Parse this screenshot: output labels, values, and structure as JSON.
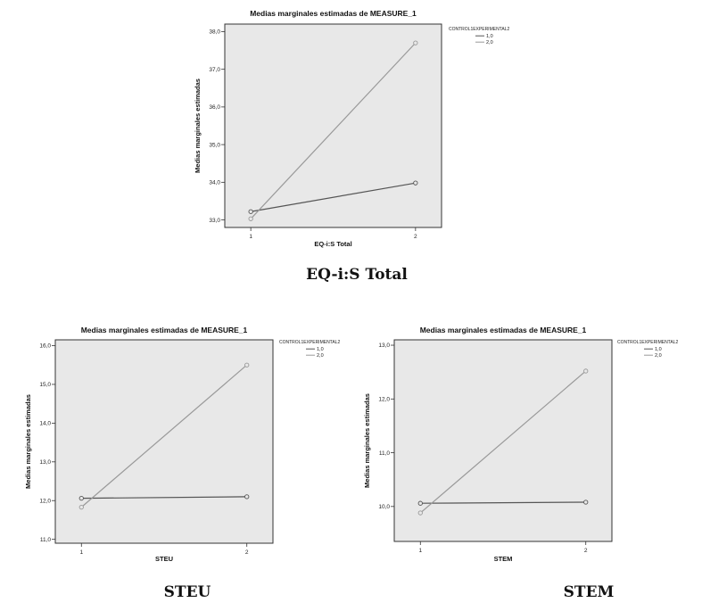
{
  "chart_data": [
    {
      "type": "line",
      "title": "Medias marginales estimadas de MEASURE_1",
      "xlabel": "EQ-i:S Total",
      "ylabel": "Medias marginales estimadas",
      "categories": [
        "1",
        "2"
      ],
      "ylim": [
        32.8,
        38.2
      ],
      "yticks": [
        "33,0",
        "34,0",
        "35,0",
        "36,0",
        "37,0",
        "38,0"
      ],
      "ytick_values": [
        33,
        34,
        35,
        36,
        37,
        38
      ],
      "legend_title": "CONTROL1EXPERIMENTAL2",
      "legend_position": "top-right",
      "grid": false,
      "series": [
        {
          "name": "1,0",
          "values": [
            33.22,
            33.98
          ],
          "color": "#555555"
        },
        {
          "name": "2,0",
          "values": [
            33.03,
            37.7
          ],
          "color": "#999999"
        }
      ],
      "caption": "EQ-i:S Total"
    },
    {
      "type": "line",
      "title": "Medias marginales estimadas de MEASURE_1",
      "xlabel": "STEU",
      "ylabel": "Medias marginales estimadas",
      "categories": [
        "1",
        "2"
      ],
      "ylim": [
        10.9,
        16.15
      ],
      "yticks": [
        "11,0",
        "12,0",
        "13,0",
        "14,0",
        "15,0",
        "16,0"
      ],
      "ytick_values": [
        11,
        12,
        13,
        14,
        15,
        16
      ],
      "legend_title": "CONTROL1EXPERIMENTAL2",
      "legend_position": "top-right",
      "grid": false,
      "series": [
        {
          "name": "1,0",
          "values": [
            12.06,
            12.1
          ],
          "color": "#555555"
        },
        {
          "name": "2,0",
          "values": [
            11.83,
            15.5
          ],
          "color": "#999999"
        }
      ],
      "caption": "STEU"
    },
    {
      "type": "line",
      "title": "Medias marginales estimadas de MEASURE_1",
      "xlabel": "STEM",
      "ylabel": "Medias marginales estimadas",
      "categories": [
        "1",
        "2"
      ],
      "ylim": [
        9.35,
        13.1
      ],
      "yticks": [
        "10,0",
        "11,0",
        "12,0",
        "13,0"
      ],
      "ytick_values": [
        10,
        11,
        12,
        13
      ],
      "legend_title": "CONTROL1EXPERIMENTAL2",
      "legend_position": "top-right",
      "grid": false,
      "series": [
        {
          "name": "1,0",
          "values": [
            10.06,
            10.08
          ],
          "color": "#555555"
        },
        {
          "name": "2,0",
          "values": [
            9.88,
            12.52
          ],
          "color": "#999999"
        }
      ],
      "caption": "STEM"
    }
  ],
  "style": {
    "plot_background": "#e8e8e8",
    "axis_color": "#333333"
  }
}
